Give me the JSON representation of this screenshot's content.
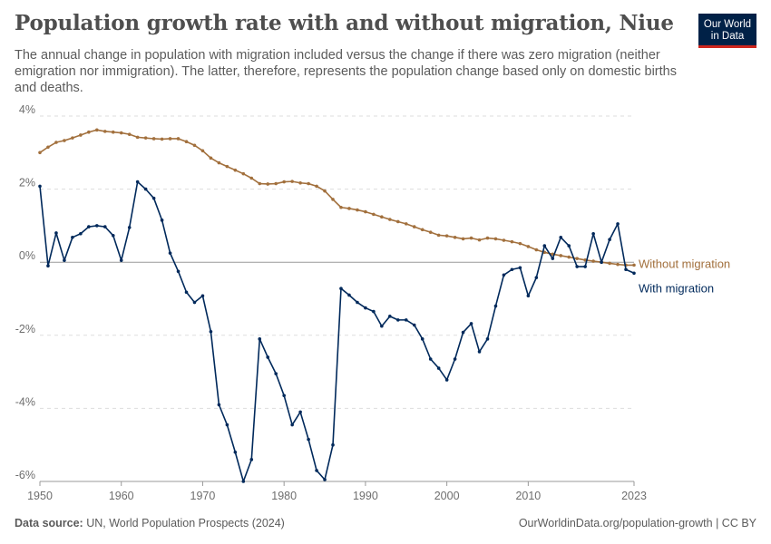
{
  "header": {
    "title": "Population growth rate with and without migration, Niue",
    "subtitle": "The annual change in population with migration included versus the change if there was zero migration (neither emigration nor immigration). The latter, therefore, represents the population change based only on domestic births and deaths."
  },
  "logo": {
    "line1": "Our World",
    "line2": "in Data",
    "bg_color": "#002147",
    "accent_color": "#ce261e"
  },
  "footer": {
    "source_label": "Data source:",
    "source_text": "UN, World Population Prospects (2024)",
    "link": "OurWorldinData.org/population-growth | CC BY"
  },
  "chart_data": {
    "type": "line",
    "xlim": [
      1950,
      2023
    ],
    "ylim": [
      -6,
      4
    ],
    "x_ticks": [
      {
        "value": 1950,
        "label": "1950"
      },
      {
        "value": 1960,
        "label": "1960"
      },
      {
        "value": 1970,
        "label": "1970"
      },
      {
        "value": 1980,
        "label": "1980"
      },
      {
        "value": 1990,
        "label": "1990"
      },
      {
        "value": 2000,
        "label": "2000"
      },
      {
        "value": 2010,
        "label": "2010"
      },
      {
        "value": 2023,
        "label": "2023"
      }
    ],
    "y_ticks": [
      {
        "value": 4,
        "label": "4%"
      },
      {
        "value": 2,
        "label": "2%"
      },
      {
        "value": 0,
        "label": "0%"
      },
      {
        "value": -2,
        "label": "-2%"
      },
      {
        "value": -4,
        "label": "-4%"
      },
      {
        "value": -6,
        "label": "-6%"
      }
    ],
    "grid": true,
    "x": [
      1950,
      1951,
      1952,
      1953,
      1954,
      1955,
      1956,
      1957,
      1958,
      1959,
      1960,
      1961,
      1962,
      1963,
      1964,
      1965,
      1966,
      1967,
      1968,
      1969,
      1970,
      1971,
      1972,
      1973,
      1974,
      1975,
      1976,
      1977,
      1978,
      1979,
      1980,
      1981,
      1982,
      1983,
      1984,
      1985,
      1986,
      1987,
      1988,
      1989,
      1990,
      1991,
      1992,
      1993,
      1994,
      1995,
      1996,
      1997,
      1998,
      1999,
      2000,
      2001,
      2002,
      2003,
      2004,
      2005,
      2006,
      2007,
      2008,
      2009,
      2010,
      2011,
      2012,
      2013,
      2014,
      2015,
      2016,
      2017,
      2018,
      2019,
      2020,
      2021,
      2022,
      2023
    ],
    "series": [
      {
        "name": "Without migration",
        "color": "#a2703d",
        "values": [
          3.0,
          3.15,
          3.28,
          3.33,
          3.4,
          3.48,
          3.56,
          3.62,
          3.58,
          3.56,
          3.54,
          3.5,
          3.42,
          3.4,
          3.38,
          3.37,
          3.38,
          3.38,
          3.3,
          3.2,
          3.05,
          2.85,
          2.72,
          2.62,
          2.52,
          2.42,
          2.3,
          2.15,
          2.14,
          2.15,
          2.2,
          2.21,
          2.17,
          2.15,
          2.08,
          1.95,
          1.72,
          1.5,
          1.47,
          1.43,
          1.38,
          1.31,
          1.24,
          1.17,
          1.11,
          1.05,
          0.97,
          0.89,
          0.82,
          0.74,
          0.72,
          0.68,
          0.64,
          0.66,
          0.61,
          0.66,
          0.64,
          0.6,
          0.56,
          0.51,
          0.43,
          0.34,
          0.27,
          0.22,
          0.18,
          0.14,
          0.1,
          0.06,
          0.03,
          0.0,
          -0.03,
          -0.06,
          -0.08,
          -0.08
        ]
      },
      {
        "name": "With migration",
        "color": "#00295b",
        "values": [
          2.08,
          -0.1,
          0.8,
          0.05,
          0.68,
          0.78,
          0.97,
          1.0,
          0.97,
          0.73,
          0.05,
          0.95,
          2.2,
          2.0,
          1.75,
          1.15,
          0.25,
          -0.25,
          -0.82,
          -1.1,
          -0.92,
          -1.9,
          -3.9,
          -4.45,
          -5.2,
          -6.0,
          -5.4,
          -2.1,
          -2.6,
          -3.05,
          -3.65,
          -4.45,
          -4.1,
          -4.85,
          -5.7,
          -5.95,
          -5.0,
          -0.72,
          -0.9,
          -1.1,
          -1.25,
          -1.35,
          -1.75,
          -1.48,
          -1.58,
          -1.58,
          -1.72,
          -2.1,
          -2.65,
          -2.9,
          -3.22,
          -2.65,
          -1.92,
          -1.68,
          -2.45,
          -2.1,
          -1.2,
          -0.35,
          -0.2,
          -0.15,
          -0.92,
          -0.42,
          0.45,
          0.1,
          0.68,
          0.45,
          -0.12,
          -0.12,
          0.78,
          0.0,
          0.62,
          1.05,
          -0.2,
          -0.3
        ]
      }
    ]
  }
}
